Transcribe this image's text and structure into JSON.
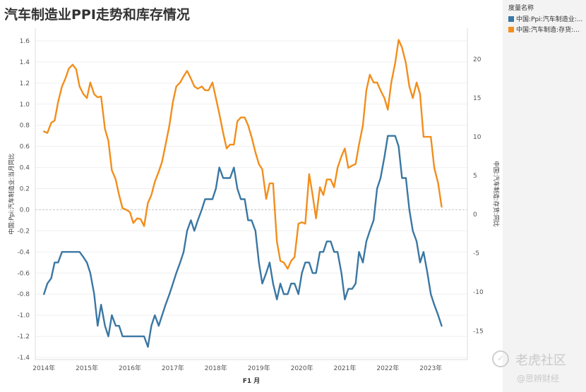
{
  "title": "汽车制造业PPI走势和库存情况",
  "legend": {
    "title": "度量名称",
    "items": [
      {
        "label": "中国:Ppi:汽车制造业:...",
        "color": "#3a77a3"
      },
      {
        "label": "中国:汽车制造:存货:...",
        "color": "#f28e1c"
      }
    ]
  },
  "watermark": {
    "brand": "老虎社区",
    "author": "@思辨财经"
  },
  "chart_data": {
    "type": "line",
    "xlabel": "F1 月",
    "x_ticks": [
      "2014年",
      "2015年",
      "2016年",
      "2017年",
      "2018年",
      "2019年",
      "2020年",
      "2021年",
      "2022年",
      "2023年"
    ],
    "x_range": [
      2013.8,
      2023.85
    ],
    "y_left": {
      "label": "中国:Ppi:汽车制造业:当月同比",
      "ticks": [
        "1.6",
        "1.4",
        "1.2",
        "1.0",
        "0.8",
        "0.6",
        "0.4",
        "0.2",
        "0.0",
        "-0.2",
        "-0.4",
        "-0.6",
        "-0.8",
        "-1.0",
        "-1.2",
        "-1.4"
      ],
      "range": [
        -1.42,
        1.72
      ]
    },
    "y_right": {
      "label": "中国:汽车制造:存货:同比",
      "ticks": [
        "20",
        "15",
        "10",
        "5",
        "0",
        "-5",
        "-10",
        "-15"
      ],
      "range": [
        -18.7,
        24.0
      ]
    },
    "grid": true,
    "legend_position": "top-right",
    "series": [
      {
        "name": "中国:Ppi:汽车制造业:...",
        "axis": "left",
        "color": "#3a77a3",
        "x": [
          2014.0,
          2014.08,
          2014.17,
          2014.25,
          2014.33,
          2014.42,
          2014.5,
          2014.58,
          2014.67,
          2014.75,
          2014.83,
          2014.92,
          2015.0,
          2015.08,
          2015.17,
          2015.25,
          2015.33,
          2015.42,
          2015.5,
          2015.58,
          2015.67,
          2015.75,
          2015.83,
          2015.92,
          2016.0,
          2016.08,
          2016.17,
          2016.25,
          2016.33,
          2016.42,
          2016.5,
          2016.58,
          2016.67,
          2016.75,
          2016.83,
          2016.92,
          2017.0,
          2017.08,
          2017.17,
          2017.25,
          2017.33,
          2017.42,
          2017.5,
          2017.58,
          2017.67,
          2017.75,
          2017.83,
          2017.92,
          2018.0,
          2018.08,
          2018.17,
          2018.25,
          2018.33,
          2018.42,
          2018.5,
          2018.58,
          2018.67,
          2018.75,
          2018.83,
          2018.92,
          2019.0,
          2019.08,
          2019.17,
          2019.25,
          2019.33,
          2019.42,
          2019.5,
          2019.58,
          2019.67,
          2019.75,
          2019.83,
          2019.92,
          2020.0,
          2020.08,
          2020.17,
          2020.25,
          2020.33,
          2020.42,
          2020.5,
          2020.58,
          2020.67,
          2020.75,
          2020.83,
          2020.92,
          2021.0,
          2021.08,
          2021.17,
          2021.25,
          2021.33,
          2021.42,
          2021.5,
          2021.58,
          2021.67,
          2021.75,
          2021.83,
          2021.92,
          2022.0,
          2022.08,
          2022.17,
          2022.25,
          2022.33,
          2022.42,
          2022.5,
          2022.58,
          2022.67,
          2022.75,
          2022.83,
          2022.92,
          2023.0,
          2023.08,
          2023.17,
          2023.25,
          2023.33,
          2023.42,
          2023.5
        ],
        "y": [
          -0.8,
          -0.7,
          -0.65,
          -0.5,
          -0.5,
          -0.4,
          -0.4,
          -0.4,
          -0.4,
          -0.4,
          -0.4,
          -0.45,
          -0.5,
          -0.6,
          -0.8,
          -1.1,
          -0.9,
          -1.1,
          -1.2,
          -1.0,
          -1.1,
          -1.1,
          -1.2,
          -1.2,
          -1.2,
          -1.2,
          -1.2,
          -1.2,
          -1.2,
          -1.3,
          -1.1,
          -1.0,
          -1.1,
          -1.0,
          -0.9,
          -0.8,
          -0.7,
          -0.6,
          -0.5,
          -0.4,
          -0.2,
          -0.1,
          -0.2,
          -0.1,
          0.0,
          0.1,
          0.1,
          0.1,
          0.2,
          0.4,
          0.3,
          0.3,
          0.3,
          0.4,
          0.2,
          0.1,
          0.1,
          -0.1,
          -0.1,
          -0.2,
          -0.5,
          -0.7,
          -0.6,
          -0.5,
          -0.7,
          -0.85,
          -0.7,
          -0.8,
          -0.8,
          -0.7,
          -0.7,
          -0.8,
          -0.6,
          -0.5,
          -0.5,
          -0.6,
          -0.6,
          -0.4,
          -0.4,
          -0.3,
          -0.3,
          -0.4,
          -0.4,
          -0.6,
          -0.85,
          -0.75,
          -0.75,
          -0.7,
          -0.4,
          -0.5,
          -0.3,
          -0.2,
          -0.1,
          0.2,
          0.3,
          0.5,
          0.7,
          0.7,
          0.7,
          0.6,
          0.3,
          0.3,
          0.0,
          -0.2,
          -0.3,
          -0.5,
          -0.4,
          -0.6,
          -0.8,
          -0.9,
          -1.0,
          -1.1,
          null,
          null,
          null
        ]
      },
      {
        "name": "中国:汽车制造:存货:...",
        "axis": "right",
        "color": "#f28e1c",
        "x": [
          2014.0,
          2014.08,
          2014.17,
          2014.25,
          2014.33,
          2014.42,
          2014.5,
          2014.58,
          2014.67,
          2014.75,
          2014.83,
          2014.92,
          2015.0,
          2015.08,
          2015.17,
          2015.25,
          2015.33,
          2015.42,
          2015.5,
          2015.58,
          2015.67,
          2015.75,
          2015.83,
          2015.92,
          2016.0,
          2016.08,
          2016.17,
          2016.25,
          2016.33,
          2016.42,
          2016.5,
          2016.58,
          2016.67,
          2016.75,
          2016.83,
          2016.92,
          2017.0,
          2017.08,
          2017.17,
          2017.25,
          2017.33,
          2017.42,
          2017.5,
          2017.58,
          2017.67,
          2017.75,
          2017.83,
          2017.92,
          2018.0,
          2018.08,
          2018.17,
          2018.25,
          2018.33,
          2018.42,
          2018.5,
          2018.58,
          2018.67,
          2018.75,
          2018.83,
          2018.92,
          2019.0,
          2019.08,
          2019.17,
          2019.25,
          2019.33,
          2019.42,
          2019.5,
          2019.58,
          2019.67,
          2019.75,
          2019.83,
          2019.92,
          2020.0,
          2020.08,
          2020.17,
          2020.25,
          2020.33,
          2020.42,
          2020.5,
          2020.58,
          2020.67,
          2020.75,
          2020.83,
          2020.92,
          2021.0,
          2021.08,
          2021.17,
          2021.25,
          2021.33,
          2021.42,
          2021.5,
          2021.58,
          2021.67,
          2021.75,
          2021.83,
          2021.92,
          2022.0,
          2022.08,
          2022.17,
          2022.25,
          2022.33,
          2022.42,
          2022.5,
          2022.58,
          2022.67,
          2022.75,
          2022.83,
          2022.92,
          2023.0,
          2023.08,
          2023.17,
          2023.25,
          2023.33,
          2023.42,
          2023.5
        ],
        "y": [
          10.7,
          10.5,
          11.8,
          12.1,
          14.5,
          16.5,
          17.5,
          18.8,
          19.3,
          18.7,
          16.5,
          15.5,
          15.0,
          17.0,
          15.5,
          15.1,
          15.2,
          11.0,
          9.5,
          5.7,
          4.5,
          2.5,
          0.8,
          0.6,
          0.3,
          -1.1,
          -0.5,
          -0.6,
          -1.5,
          1.5,
          2.5,
          4.2,
          5.5,
          6.8,
          9.0,
          11.5,
          14.5,
          16.5,
          17.0,
          17.8,
          18.5,
          17.5,
          16.5,
          16.2,
          16.5,
          16.0,
          16.0,
          17.0,
          15.0,
          13.0,
          10.5,
          8.5,
          9.0,
          9.0,
          12.0,
          12.5,
          12.5,
          11.5,
          10.0,
          8.0,
          6.5,
          5.8,
          2.0,
          4.0,
          4.0,
          -3.5,
          -6.0,
          -6.2,
          -7.0,
          -6.0,
          -5.5,
          -1.2,
          -1.0,
          -1.2,
          5.2,
          2.5,
          -0.5,
          3.5,
          2.5,
          4.5,
          4.5,
          3.5,
          6.0,
          7.5,
          8.5,
          6.0,
          6.3,
          6.5,
          9.0,
          11.5,
          16.0,
          18.0,
          17.0,
          17.0,
          16.0,
          15.0,
          13.5,
          17.0,
          19.5,
          22.5,
          21.5,
          19.5,
          16.5,
          15.0,
          17.0,
          15.5,
          10.0,
          10.0,
          10.0,
          6.0,
          4.0,
          1.0,
          null,
          null,
          null
        ]
      }
    ]
  }
}
